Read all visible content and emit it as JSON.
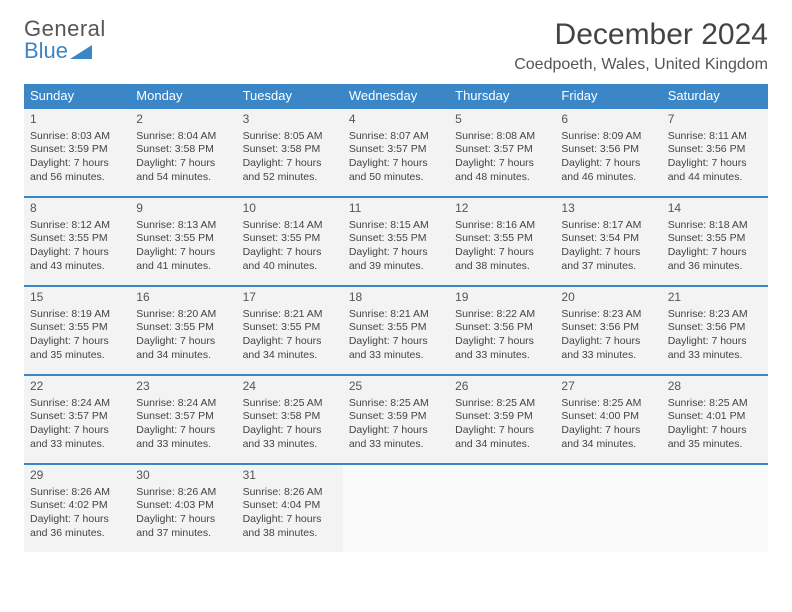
{
  "brand": {
    "line1": "General",
    "line2": "Blue",
    "accent_color": "#3b86c6"
  },
  "title": "December 2024",
  "location": "Coedpoeth, Wales, United Kingdom",
  "day_headers": [
    "Sunday",
    "Monday",
    "Tuesday",
    "Wednesday",
    "Thursday",
    "Friday",
    "Saturday"
  ],
  "colors": {
    "header_bg": "#3b86c6",
    "header_text": "#ffffff",
    "cell_bg": "#f3f3f3",
    "row_border": "#3b86c6",
    "text": "#444444"
  },
  "typography": {
    "title_fontsize": 30,
    "location_fontsize": 16,
    "dayheader_fontsize": 13,
    "cell_fontsize": 10.5,
    "daynum_fontsize": 12
  },
  "weeks": [
    [
      {
        "n": "1",
        "sr": "Sunrise: 8:03 AM",
        "ss": "Sunset: 3:59 PM",
        "dl": "Daylight: 7 hours and 56 minutes."
      },
      {
        "n": "2",
        "sr": "Sunrise: 8:04 AM",
        "ss": "Sunset: 3:58 PM",
        "dl": "Daylight: 7 hours and 54 minutes."
      },
      {
        "n": "3",
        "sr": "Sunrise: 8:05 AM",
        "ss": "Sunset: 3:58 PM",
        "dl": "Daylight: 7 hours and 52 minutes."
      },
      {
        "n": "4",
        "sr": "Sunrise: 8:07 AM",
        "ss": "Sunset: 3:57 PM",
        "dl": "Daylight: 7 hours and 50 minutes."
      },
      {
        "n": "5",
        "sr": "Sunrise: 8:08 AM",
        "ss": "Sunset: 3:57 PM",
        "dl": "Daylight: 7 hours and 48 minutes."
      },
      {
        "n": "6",
        "sr": "Sunrise: 8:09 AM",
        "ss": "Sunset: 3:56 PM",
        "dl": "Daylight: 7 hours and 46 minutes."
      },
      {
        "n": "7",
        "sr": "Sunrise: 8:11 AM",
        "ss": "Sunset: 3:56 PM",
        "dl": "Daylight: 7 hours and 44 minutes."
      }
    ],
    [
      {
        "n": "8",
        "sr": "Sunrise: 8:12 AM",
        "ss": "Sunset: 3:55 PM",
        "dl": "Daylight: 7 hours and 43 minutes."
      },
      {
        "n": "9",
        "sr": "Sunrise: 8:13 AM",
        "ss": "Sunset: 3:55 PM",
        "dl": "Daylight: 7 hours and 41 minutes."
      },
      {
        "n": "10",
        "sr": "Sunrise: 8:14 AM",
        "ss": "Sunset: 3:55 PM",
        "dl": "Daylight: 7 hours and 40 minutes."
      },
      {
        "n": "11",
        "sr": "Sunrise: 8:15 AM",
        "ss": "Sunset: 3:55 PM",
        "dl": "Daylight: 7 hours and 39 minutes."
      },
      {
        "n": "12",
        "sr": "Sunrise: 8:16 AM",
        "ss": "Sunset: 3:55 PM",
        "dl": "Daylight: 7 hours and 38 minutes."
      },
      {
        "n": "13",
        "sr": "Sunrise: 8:17 AM",
        "ss": "Sunset: 3:54 PM",
        "dl": "Daylight: 7 hours and 37 minutes."
      },
      {
        "n": "14",
        "sr": "Sunrise: 8:18 AM",
        "ss": "Sunset: 3:55 PM",
        "dl": "Daylight: 7 hours and 36 minutes."
      }
    ],
    [
      {
        "n": "15",
        "sr": "Sunrise: 8:19 AM",
        "ss": "Sunset: 3:55 PM",
        "dl": "Daylight: 7 hours and 35 minutes."
      },
      {
        "n": "16",
        "sr": "Sunrise: 8:20 AM",
        "ss": "Sunset: 3:55 PM",
        "dl": "Daylight: 7 hours and 34 minutes."
      },
      {
        "n": "17",
        "sr": "Sunrise: 8:21 AM",
        "ss": "Sunset: 3:55 PM",
        "dl": "Daylight: 7 hours and 34 minutes."
      },
      {
        "n": "18",
        "sr": "Sunrise: 8:21 AM",
        "ss": "Sunset: 3:55 PM",
        "dl": "Daylight: 7 hours and 33 minutes."
      },
      {
        "n": "19",
        "sr": "Sunrise: 8:22 AM",
        "ss": "Sunset: 3:56 PM",
        "dl": "Daylight: 7 hours and 33 minutes."
      },
      {
        "n": "20",
        "sr": "Sunrise: 8:23 AM",
        "ss": "Sunset: 3:56 PM",
        "dl": "Daylight: 7 hours and 33 minutes."
      },
      {
        "n": "21",
        "sr": "Sunrise: 8:23 AM",
        "ss": "Sunset: 3:56 PM",
        "dl": "Daylight: 7 hours and 33 minutes."
      }
    ],
    [
      {
        "n": "22",
        "sr": "Sunrise: 8:24 AM",
        "ss": "Sunset: 3:57 PM",
        "dl": "Daylight: 7 hours and 33 minutes."
      },
      {
        "n": "23",
        "sr": "Sunrise: 8:24 AM",
        "ss": "Sunset: 3:57 PM",
        "dl": "Daylight: 7 hours and 33 minutes."
      },
      {
        "n": "24",
        "sr": "Sunrise: 8:25 AM",
        "ss": "Sunset: 3:58 PM",
        "dl": "Daylight: 7 hours and 33 minutes."
      },
      {
        "n": "25",
        "sr": "Sunrise: 8:25 AM",
        "ss": "Sunset: 3:59 PM",
        "dl": "Daylight: 7 hours and 33 minutes."
      },
      {
        "n": "26",
        "sr": "Sunrise: 8:25 AM",
        "ss": "Sunset: 3:59 PM",
        "dl": "Daylight: 7 hours and 34 minutes."
      },
      {
        "n": "27",
        "sr": "Sunrise: 8:25 AM",
        "ss": "Sunset: 4:00 PM",
        "dl": "Daylight: 7 hours and 34 minutes."
      },
      {
        "n": "28",
        "sr": "Sunrise: 8:25 AM",
        "ss": "Sunset: 4:01 PM",
        "dl": "Daylight: 7 hours and 35 minutes."
      }
    ],
    [
      {
        "n": "29",
        "sr": "Sunrise: 8:26 AM",
        "ss": "Sunset: 4:02 PM",
        "dl": "Daylight: 7 hours and 36 minutes."
      },
      {
        "n": "30",
        "sr": "Sunrise: 8:26 AM",
        "ss": "Sunset: 4:03 PM",
        "dl": "Daylight: 7 hours and 37 minutes."
      },
      {
        "n": "31",
        "sr": "Sunrise: 8:26 AM",
        "ss": "Sunset: 4:04 PM",
        "dl": "Daylight: 7 hours and 38 minutes."
      },
      null,
      null,
      null,
      null
    ]
  ]
}
